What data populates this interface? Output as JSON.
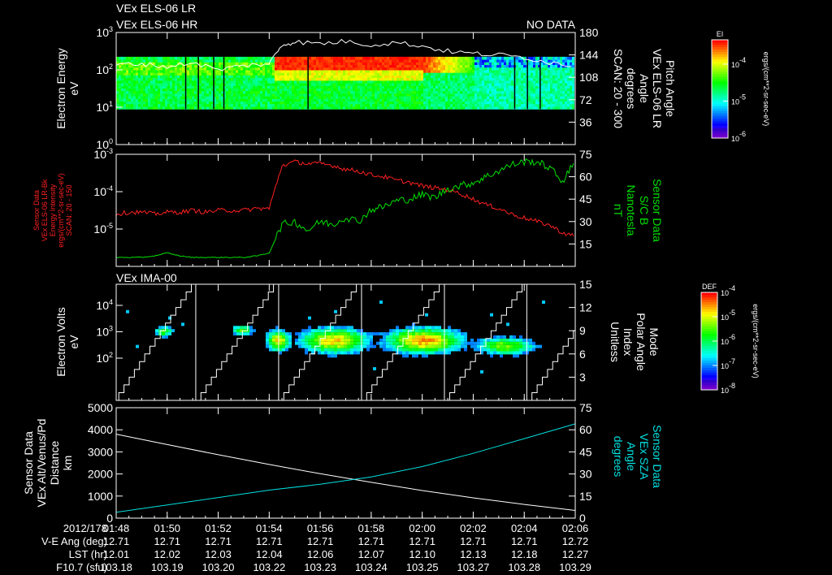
{
  "header": {
    "line1": "VEx ELS-06 LR",
    "line2": "VEx ELS-06 HR",
    "status": "NO DATA"
  },
  "colors": {
    "background": "#000000",
    "axes": "#ffffff",
    "energy_intensity_line": "#ff2020",
    "magnetic_field_line": "#00e000",
    "sza_line": "#00e0e0",
    "altitude_line": "#ffffff"
  },
  "chart_data": [
    {
      "type": "heatmap",
      "panel": "els",
      "left_label": [
        "Electron Energy",
        "eV"
      ],
      "right_label": [
        "Pitch Angle",
        "VEx ELS-06 LR",
        "Angle",
        "degrees",
        "SCAN: 20 - 300"
      ],
      "ylim_log10": [
        0,
        3
      ],
      "yticks": [
        "10^0",
        "10^1",
        "10^2",
        "10^3"
      ],
      "right_ylim": [
        0,
        180
      ],
      "right_ticks": [
        "36",
        "72",
        "108",
        "144",
        "180"
      ],
      "colorbar": {
        "label": "EI",
        "ticks": [
          "10^-4",
          "10^-5",
          "10^-6"
        ],
        "unit": "ergs/(cm**2-sr-sec-eV)"
      },
      "energy_band_log10": [
        0.95,
        2.35
      ],
      "intensity_regions": [
        {
          "from_min": 0,
          "to_min": 6.2,
          "level": "moderate"
        },
        {
          "from_min": 6.2,
          "to_min": 12,
          "level": "high",
          "peak_energy_log10": [
            1.95,
            2.3
          ]
        },
        {
          "from_min": 12,
          "to_min": 14,
          "level": "decaying"
        },
        {
          "from_min": 14,
          "to_min": 18,
          "level": "low"
        }
      ],
      "gaps_min": [
        2.7,
        3.2,
        3.8,
        4.2,
        7.5,
        15.6,
        16.1,
        16.6
      ],
      "pitch_angle": {
        "t_min": [
          0,
          1,
          2,
          3,
          4,
          5,
          6,
          6.5,
          7,
          8,
          9,
          10,
          11,
          12,
          13,
          14,
          15,
          16,
          17,
          18
        ],
        "deg": [
          128,
          130,
          125,
          132,
          120,
          127,
          130,
          160,
          165,
          162,
          166,
          160,
          164,
          158,
          150,
          146,
          144,
          140,
          132,
          126
        ]
      }
    },
    {
      "type": "line",
      "panel": "sensor",
      "left_label": [
        "Sensor Data",
        "VEx ELS-06 LR-Bk",
        "Energy Intensity",
        "ergs/(cm**2-sr-sec-eV)",
        "SCAN: 20 - 150"
      ],
      "right_label": [
        "Sensor Data",
        "S/C B",
        "Nanotesla",
        "nT"
      ],
      "ylim_log10": [
        -6,
        -3
      ],
      "yticks": [
        "10^-3",
        "10^-4",
        "10^-5"
      ],
      "right_ylim": [
        0,
        75
      ],
      "right_ticks": [
        "15",
        "30",
        "45",
        "60",
        "75"
      ],
      "t_min": [
        0,
        0.5,
        1,
        1.5,
        2,
        2.5,
        3,
        3.5,
        4,
        4.5,
        5,
        5.5,
        6,
        6.5,
        7,
        7.5,
        8,
        8.5,
        9,
        9.5,
        10,
        10.5,
        11,
        11.5,
        12,
        12.5,
        13,
        13.5,
        14,
        14.5,
        15,
        15.5,
        16,
        16.5,
        17,
        17.5,
        18
      ],
      "series": [
        {
          "name": "Energy Intensity (log10)",
          "axis": "left",
          "values": [
            -4.6,
            -4.55,
            -4.55,
            -4.6,
            -4.55,
            -4.55,
            -4.5,
            -4.55,
            -4.5,
            -4.5,
            -4.5,
            -4.45,
            -4.45,
            -3.3,
            -3.2,
            -3.25,
            -3.25,
            -3.3,
            -3.4,
            -3.45,
            -3.55,
            -3.6,
            -3.7,
            -3.75,
            -3.85,
            -3.9,
            -3.95,
            -4.05,
            -4.2,
            -4.35,
            -4.45,
            -4.6,
            -4.7,
            -4.8,
            -4.9,
            -5.1,
            -5.2
          ]
        },
        {
          "name": "S/C B (nT)",
          "axis": "right",
          "values": [
            6,
            6,
            6,
            7,
            9,
            7,
            6,
            6,
            6,
            6,
            6,
            7,
            9,
            28,
            30,
            24,
            30,
            28,
            33,
            30,
            38,
            40,
            44,
            45,
            48,
            46,
            52,
            54,
            56,
            60,
            64,
            68,
            70,
            70,
            66,
            57,
            70
          ]
        }
      ]
    },
    {
      "type": "heatmap",
      "panel": "ima",
      "title": "VEx IMA-00",
      "left_label": [
        "Electron Volts",
        "eV"
      ],
      "right_label": [
        "Mode",
        "Polar Angle",
        "Index",
        "Unitless"
      ],
      "ylim_log10": [
        0.4,
        4.8
      ],
      "yticks": [
        "10^2",
        "10^3",
        "10^4"
      ],
      "right_ylim": [
        0,
        15
      ],
      "right_ticks": [
        "3",
        "6",
        "9",
        "12",
        "15"
      ],
      "colorbar": {
        "label": "DEF",
        "ticks": [
          "10^-4",
          "10^-5",
          "10^-6",
          "10^-7",
          "10^-8"
        ],
        "unit": "ergs/(cm**2-sr-sec-eV)"
      },
      "blobs": [
        {
          "t_min": 1.8,
          "width_min": 0.3,
          "energy_log10": 2.95,
          "spread": 0.15,
          "peak": 0.6
        },
        {
          "t_min": 4.9,
          "width_min": 0.3,
          "energy_log10": 3.0,
          "spread": 0.15,
          "peak": 0.62
        },
        {
          "t_min": 6.3,
          "width_min": 0.35,
          "energy_log10": 2.6,
          "spread": 0.3,
          "peak": 0.8
        },
        {
          "t_min": 8.5,
          "width_min": 1.0,
          "energy_log10": 2.6,
          "spread": 0.35,
          "peak": 0.82
        },
        {
          "t_min": 12.0,
          "width_min": 1.1,
          "energy_log10": 2.6,
          "spread": 0.35,
          "peak": 0.88
        },
        {
          "t_min": 15.2,
          "width_min": 0.9,
          "energy_log10": 2.4,
          "spread": 0.25,
          "peak": 0.66
        }
      ],
      "mode_sweep_starts_min": [
        -0.1,
        3.12,
        6.37,
        9.62,
        12.87,
        16.1
      ],
      "sweep_period_min": 3.25,
      "mode_max": 15
    },
    {
      "type": "line",
      "panel": "orbit",
      "left_label": [
        "Sensor Data",
        "VEx Alt/Venus/Pd",
        "Distance",
        "km"
      ],
      "right_label": [
        "Sensor Data",
        "VEx SZA",
        "Angle",
        "degrees"
      ],
      "ylim": [
        0,
        5000
      ],
      "yticks": [
        "0",
        "1000",
        "2000",
        "3000",
        "4000",
        "5000"
      ],
      "right_ylim": [
        0,
        75
      ],
      "right_ticks": [
        "0",
        "15",
        "30",
        "45",
        "60",
        "75"
      ],
      "t_min": [
        0,
        2,
        4,
        6,
        8,
        10,
        12,
        14,
        16,
        18
      ],
      "series": [
        {
          "name": "Altitude (km)",
          "axis": "left",
          "values": [
            3800,
            3330,
            2870,
            2430,
            2010,
            1620,
            1250,
            920,
            620,
            350
          ]
        },
        {
          "name": "SZA (deg)",
          "axis": "right",
          "values": [
            4,
            9,
            14,
            19,
            23,
            28,
            35,
            44,
            54,
            64
          ]
        }
      ]
    }
  ],
  "time_axis": {
    "date_label": "2012/178",
    "ticks": [
      "01:48",
      "01:50",
      "01:52",
      "01:54",
      "01:56",
      "01:58",
      "02:00",
      "02:02",
      "02:04",
      "02:06"
    ],
    "rows": [
      {
        "label": "V-E Ang (deg)",
        "values": [
          "12.71",
          "12.71",
          "12.71",
          "12.71",
          "12.71",
          "12.71",
          "12.71",
          "12.71",
          "12.71",
          "12.72"
        ]
      },
      {
        "label": "LST (hr)",
        "values": [
          "12.01",
          "12.02",
          "12.03",
          "12.04",
          "12.06",
          "12.07",
          "12.10",
          "12.13",
          "12.18",
          "12.27"
        ]
      },
      {
        "label": "F10.7 (sfu)",
        "values": [
          "103.18",
          "103.19",
          "103.20",
          "103.22",
          "103.23",
          "103.24",
          "103.25",
          "103.27",
          "103.28",
          "103.29"
        ]
      }
    ]
  }
}
